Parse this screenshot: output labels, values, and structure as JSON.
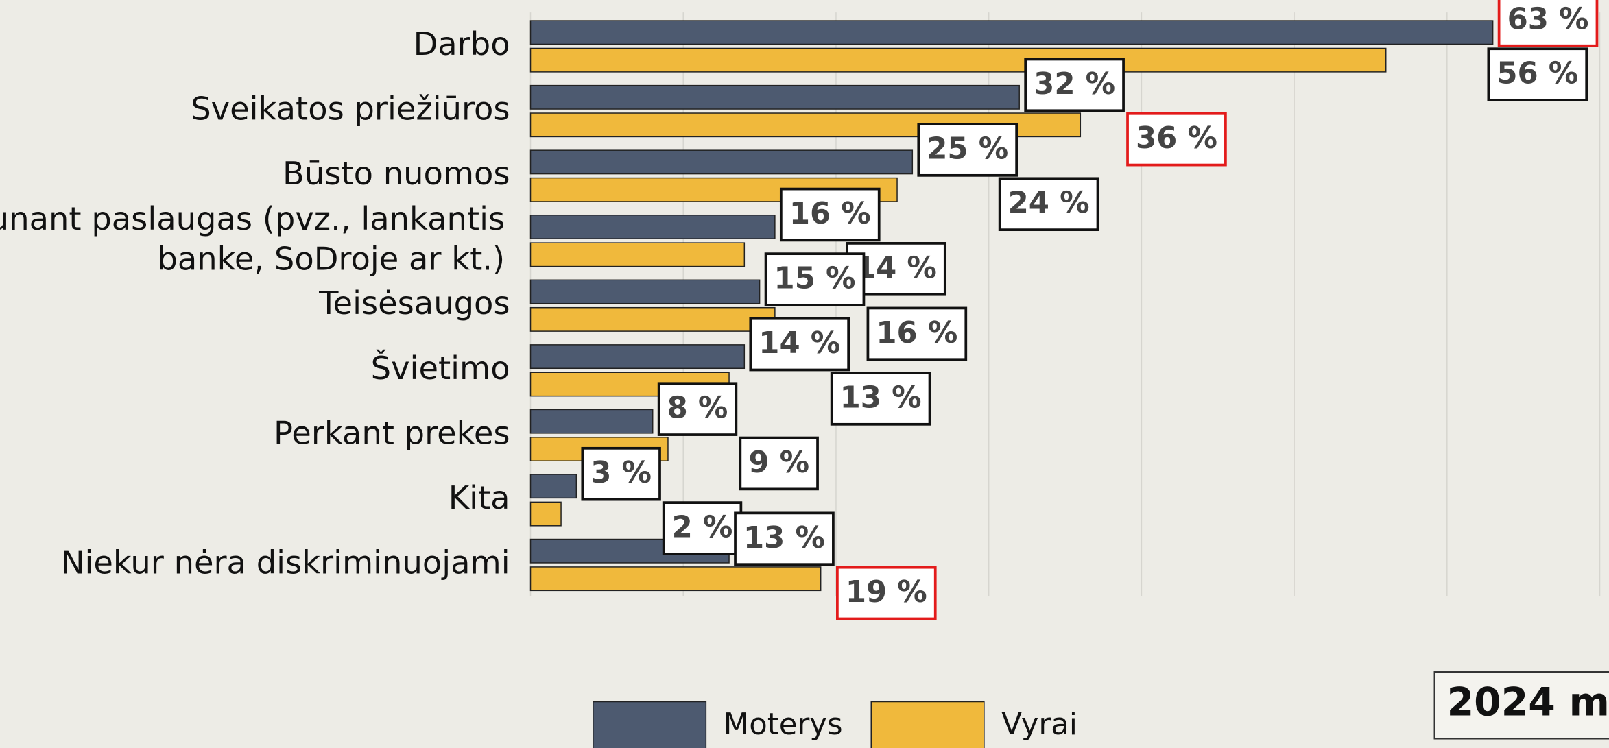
{
  "chart_data": {
    "type": "bar",
    "orientation": "horizontal",
    "categories": [
      "Darbo",
      "Sveikatos priežiūros",
      "Būsto nuomos",
      "Gaunant paslaugas (pvz., lankantis\nbanke, SoDroje ar kt.)",
      "Teisėsaugos",
      "Švietimo",
      "Perkant prekes",
      "Kita",
      "Niekur nėra diskriminuojami"
    ],
    "series": [
      {
        "name": "Moterys",
        "color": "#4d5a70",
        "values": [
          63,
          32,
          25,
          16,
          15,
          14,
          8,
          3,
          13
        ],
        "value_labels": [
          "63 %",
          "32 %",
          "25 %",
          "16 %",
          "15 %",
          "14 %",
          "8 %",
          "3 %",
          "13 %"
        ],
        "label_border_colors": [
          "#e31b1b",
          "#111111",
          "#111111",
          "#111111",
          "#111111",
          "#111111",
          "#111111",
          "#111111",
          "#111111"
        ]
      },
      {
        "name": "Vyrai",
        "color": "#f0b93c",
        "values": [
          56,
          36,
          24,
          14,
          16,
          13,
          9,
          2,
          19
        ],
        "value_labels": [
          "56 %",
          "36 %",
          "24 %",
          "14 %",
          "16 %",
          "13 %",
          "9 %",
          "2 %",
          "19 %"
        ],
        "label_border_colors": [
          "#111111",
          "#e31b1b",
          "#111111",
          "#111111",
          "#111111",
          "#111111",
          "#111111",
          "#111111",
          "#e31b1b"
        ]
      }
    ],
    "xlim": [
      0,
      70
    ],
    "xticks": [
      0,
      10,
      20,
      30,
      40,
      50,
      60,
      70
    ],
    "grid": true,
    "legend": "bottom",
    "annotation": "2024 m"
  }
}
